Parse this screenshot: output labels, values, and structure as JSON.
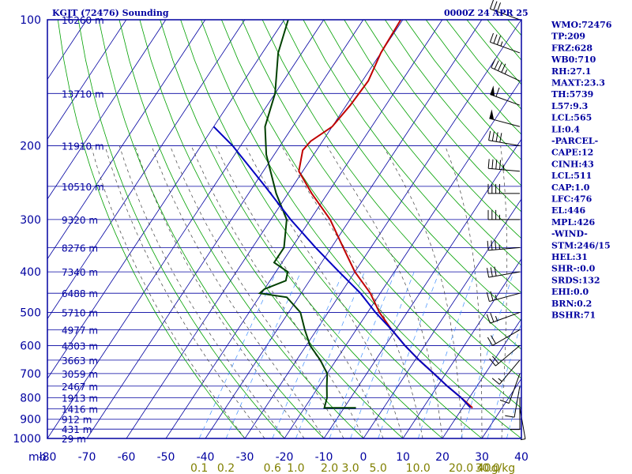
{
  "header": {
    "station": "KGJT (72476) Sounding",
    "time": "0000Z 24 APR 25"
  },
  "stats": [
    "WMO:72476",
    "TP:209",
    "FRZ:628",
    "WB0:710",
    "RH:27.1",
    "MAXT:23.3",
    "TH:5739",
    "L57:9.3",
    "LCL:565",
    "LI:0.4",
    "-PARCEL-",
    "CAPE:12",
    "CINH:43",
    "LCL:511",
    "CAP:1.0",
    "LFC:476",
    "EL:446",
    "MPL:426",
    "-WIND-",
    "STM:246/15",
    "HEL:31",
    "SHR-:0.0",
    "SRDS:132",
    "EHI:0.0",
    "BRN:0.2",
    "BSHR:71"
  ],
  "chart_data": {
    "type": "skew-t sounding",
    "title": "KGJT (72476) Sounding",
    "ylabel": "mb",
    "xlabel": "",
    "pressure_ticks": [
      100,
      200,
      300,
      400,
      500,
      600,
      700,
      800,
      900,
      1000
    ],
    "pressure_tick_labels": [
      "100",
      "200",
      "300",
      "400",
      "500",
      "600",
      "700",
      "800",
      "900",
      "1000"
    ],
    "temperature_ticks": [
      -80,
      -70,
      -60,
      -50,
      -40,
      -30,
      -20,
      -10,
      0,
      10,
      20,
      30,
      40
    ],
    "temperature_tick_labels": [
      "-80",
      "-70",
      "-60",
      "-50",
      "-40",
      "-30",
      "-20",
      "-10",
      "0",
      "10",
      "20",
      "30",
      "40"
    ],
    "temperature_range": [
      -80,
      40
    ],
    "pressure_range": [
      100,
      1000
    ],
    "height_labels": [
      {
        "p": 100,
        "label": "16260 m"
      },
      {
        "p": 150,
        "label": "13710 m"
      },
      {
        "p": 200,
        "label": "11910 m"
      },
      {
        "p": 250,
        "label": "10510 m"
      },
      {
        "p": 300,
        "label": "9320 m"
      },
      {
        "p": 350,
        "label": "8276 m"
      },
      {
        "p": 400,
        "label": "7340 m"
      },
      {
        "p": 450,
        "label": "6488 m"
      },
      {
        "p": 500,
        "label": "5710 m"
      },
      {
        "p": 550,
        "label": "4977 m"
      },
      {
        "p": 600,
        "label": "4303 m"
      },
      {
        "p": 650,
        "label": "3663 m"
      },
      {
        "p": 700,
        "label": "3059 m"
      },
      {
        "p": 750,
        "label": "2467 m"
      },
      {
        "p": 800,
        "label": "1913 m"
      },
      {
        "p": 850,
        "label": "1416 m"
      },
      {
        "p": 900,
        "label": "912 m"
      },
      {
        "p": 950,
        "label": "431 m"
      },
      {
        "p": 1000,
        "label": "29 m"
      }
    ],
    "mixing_ratio_labels": [
      "0.1",
      "0.2",
      "0.6",
      "1.0",
      "2.0",
      "3.0",
      "5.0",
      "10.0",
      "20.0",
      "30.0",
      "40g/kg"
    ],
    "series": [
      {
        "name": "temperature",
        "color": "#c00000",
        "points": [
          {
            "p": 100,
            "t": -60.5
          },
          {
            "p": 120,
            "t": -60
          },
          {
            "p": 140,
            "t": -58.5
          },
          {
            "p": 160,
            "t": -59
          },
          {
            "p": 180,
            "t": -60
          },
          {
            "p": 195,
            "t": -63
          },
          {
            "p": 205,
            "t": -63.5
          },
          {
            "p": 230,
            "t": -61
          },
          {
            "p": 260,
            "t": -54
          },
          {
            "p": 300,
            "t": -45
          },
          {
            "p": 350,
            "t": -37
          },
          {
            "p": 400,
            "t": -30
          },
          {
            "p": 450,
            "t": -22.5
          },
          {
            "p": 500,
            "t": -17
          },
          {
            "p": 550,
            "t": -11
          },
          {
            "p": 600,
            "t": -5
          },
          {
            "p": 650,
            "t": 1
          },
          {
            "p": 700,
            "t": 7
          },
          {
            "p": 750,
            "t": 12.5
          },
          {
            "p": 800,
            "t": 18
          },
          {
            "p": 845,
            "t": 22.5
          }
        ]
      },
      {
        "name": "dewpoint",
        "color": "#004000",
        "points": [
          {
            "p": 100,
            "t": -89
          },
          {
            "p": 120,
            "t": -86
          },
          {
            "p": 150,
            "t": -80
          },
          {
            "p": 180,
            "t": -77
          },
          {
            "p": 210,
            "t": -72
          },
          {
            "p": 260,
            "t": -63
          },
          {
            "p": 300,
            "t": -56
          },
          {
            "p": 350,
            "t": -52
          },
          {
            "p": 380,
            "t": -52
          },
          {
            "p": 400,
            "t": -47
          },
          {
            "p": 420,
            "t": -46
          },
          {
            "p": 440,
            "t": -50
          },
          {
            "p": 450,
            "t": -50.5
          },
          {
            "p": 460,
            "t": -43
          },
          {
            "p": 500,
            "t": -37
          },
          {
            "p": 550,
            "t": -33
          },
          {
            "p": 600,
            "t": -29
          },
          {
            "p": 650,
            "t": -24
          },
          {
            "p": 700,
            "t": -20
          },
          {
            "p": 750,
            "t": -18
          },
          {
            "p": 800,
            "t": -16
          },
          {
            "p": 845,
            "t": -15
          },
          {
            "p": 845,
            "t": -7
          }
        ]
      },
      {
        "name": "parcel",
        "color": "#0000c0",
        "points": [
          {
            "p": 180,
            "t": -90
          },
          {
            "p": 200,
            "t": -82
          },
          {
            "p": 250,
            "t": -67
          },
          {
            "p": 300,
            "t": -55
          },
          {
            "p": 350,
            "t": -44
          },
          {
            "p": 400,
            "t": -34
          },
          {
            "p": 450,
            "t": -25
          },
          {
            "p": 500,
            "t": -18
          },
          {
            "p": 550,
            "t": -11
          },
          {
            "p": 600,
            "t": -5
          },
          {
            "p": 650,
            "t": 1
          },
          {
            "p": 700,
            "t": 7
          },
          {
            "p": 750,
            "t": 12.5
          },
          {
            "p": 800,
            "t": 18
          },
          {
            "p": 845,
            "t": 22
          }
        ]
      }
    ],
    "winds": [
      {
        "p": 100,
        "dir": 290,
        "spd": 30
      },
      {
        "p": 120,
        "dir": 290,
        "spd": 35
      },
      {
        "p": 140,
        "dir": 295,
        "spd": 45
      },
      {
        "p": 160,
        "dir": 290,
        "spd": 60
      },
      {
        "p": 180,
        "dir": 285,
        "spd": 50
      },
      {
        "p": 200,
        "dir": 280,
        "spd": 40
      },
      {
        "p": 230,
        "dir": 275,
        "spd": 45
      },
      {
        "p": 260,
        "dir": 270,
        "spd": 40
      },
      {
        "p": 300,
        "dir": 270,
        "spd": 35
      },
      {
        "p": 350,
        "dir": 265,
        "spd": 35
      },
      {
        "p": 400,
        "dir": 260,
        "spd": 30
      },
      {
        "p": 450,
        "dir": 255,
        "spd": 25
      },
      {
        "p": 500,
        "dir": 250,
        "spd": 25
      },
      {
        "p": 550,
        "dir": 240,
        "spd": 20
      },
      {
        "p": 600,
        "dir": 230,
        "spd": 20
      },
      {
        "p": 650,
        "dir": 220,
        "spd": 15
      },
      {
        "p": 700,
        "dir": 200,
        "spd": 10
      },
      {
        "p": 750,
        "dir": 190,
        "spd": 10
      },
      {
        "p": 800,
        "dir": 180,
        "spd": 10
      },
      {
        "p": 845,
        "dir": 170,
        "spd": 5
      }
    ],
    "colors": {
      "frame": "#0000a0",
      "isotherm": "#0000a0",
      "dry_adiabat": "#00a000",
      "moist_adiabat": "#404040",
      "mixing_ratio": "#4090ff",
      "temperature": "#c00000",
      "dewpoint": "#004000",
      "parcel": "#0000c0"
    }
  }
}
